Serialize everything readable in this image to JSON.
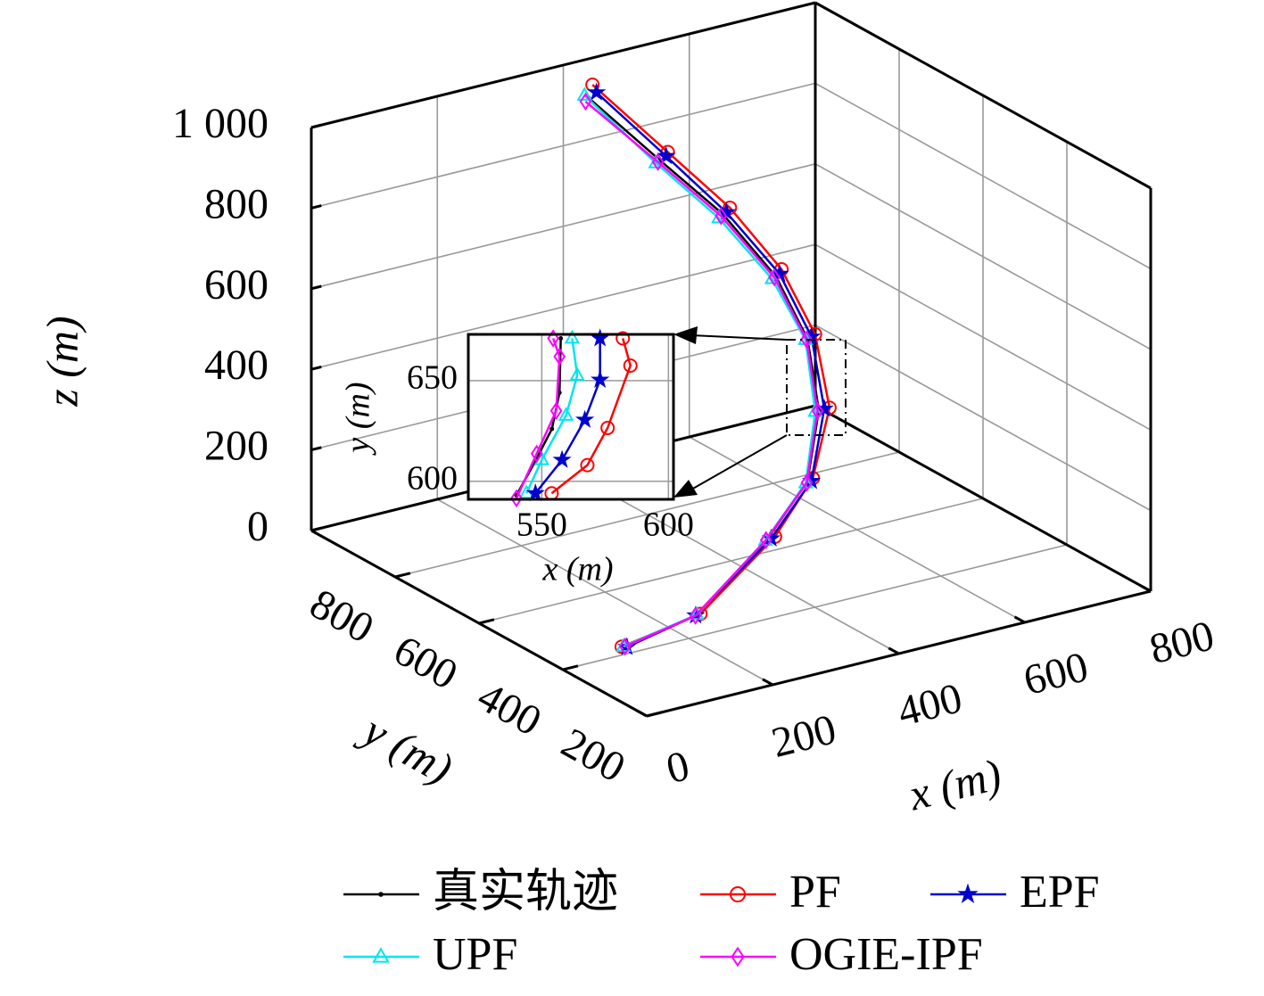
{
  "chart_data": [
    {
      "type": "line3d",
      "xlabel": "x (m)",
      "ylabel": "y (m)",
      "zlabel": "z (m)",
      "xlim": [
        0,
        800
      ],
      "ylim": [
        200,
        1000
      ],
      "zlim": [
        0,
        1000
      ],
      "xticks": [
        0,
        200,
        400,
        600,
        800
      ],
      "yticks": [
        200,
        400,
        600,
        800
      ],
      "zticks": [
        0,
        200,
        400,
        600,
        800,
        {
          "value": 1000,
          "label": "1 000"
        }
      ],
      "grid": true,
      "legend": "bottom",
      "series": [
        {
          "name": "真实轨迹",
          "color": "#000000",
          "marker": "dot",
          "x": [
            113,
            250,
            400,
            480,
            560,
            580,
            560,
            520,
            460,
            400
          ],
          "y": [
            423,
            458,
            514,
            538,
            631,
            688,
            733,
            800,
            859,
            939
          ],
          "z": [
            0,
            5,
            103,
            201,
            294,
            430,
            567,
            699,
            821,
            953
          ]
        },
        {
          "name": "PF",
          "color": "#ff0000",
          "marker": "circle",
          "x": [
            110,
            255,
            410,
            490,
            575,
            590,
            570,
            530,
            470,
            405
          ],
          "y": [
            425,
            455,
            510,
            540,
            628,
            685,
            735,
            798,
            856,
            938
          ],
          "z": [
            0,
            8,
            108,
            205,
            296,
            440,
            580,
            712,
            840,
            985
          ]
        },
        {
          "name": "EPF",
          "color": "#0000cc",
          "marker": "star",
          "x": [
            115,
            248,
            405,
            485,
            568,
            585,
            565,
            525,
            468,
            410
          ],
          "y": [
            420,
            456,
            512,
            536,
            630,
            686,
            732,
            799,
            857,
            936
          ],
          "z": [
            0,
            6,
            104,
            202,
            295,
            435,
            572,
            702,
            830,
            965
          ]
        },
        {
          "name": "UPF",
          "color": "#00e5ee",
          "marker": "triangle",
          "x": [
            112,
            252,
            398,
            478,
            555,
            578,
            555,
            515,
            455,
            395
          ],
          "y": [
            424,
            459,
            515,
            539,
            632,
            690,
            735,
            802,
            862,
            942
          ],
          "z": [
            0,
            5,
            100,
            198,
            292,
            428,
            562,
            690,
            815,
            960
          ]
        },
        {
          "name": "OGIE-IPF",
          "color": "#ff00ff",
          "marker": "diamond",
          "x": [
            114,
            249,
            399,
            479,
            558,
            579,
            558,
            518,
            457,
            396
          ],
          "y": [
            423,
            458,
            515,
            538,
            631,
            689,
            734,
            801,
            860,
            941
          ],
          "z": [
            0,
            4,
            101,
            199,
            293,
            429,
            565,
            694,
            818,
            945
          ]
        }
      ]
    },
    {
      "type": "line",
      "xlabel": "x (m)",
      "ylabel": "y (m)",
      "xlim": [
        521,
        602
      ],
      "ylim": [
        591,
        673
      ],
      "xticks": [
        550,
        600
      ],
      "yticks": [
        600,
        650
      ],
      "grid": true,
      "series": [
        {
          "color": "#000000",
          "marker": "dot",
          "x": [
            540,
            547,
            554,
            557,
            557.5
          ],
          "y": [
            593,
            609,
            626,
            644,
            671
          ]
        },
        {
          "color": "#00e5ee",
          "marker": "triangle",
          "x": [
            544,
            550,
            559.6,
            564,
            562
          ],
          "y": [
            594,
            610.6,
            632.7,
            652.6,
            671
          ]
        },
        {
          "color": "#0000cc",
          "marker": "star",
          "x": [
            547.5,
            558,
            567,
            573,
            573
          ],
          "y": [
            594,
            610.6,
            630.5,
            650.4,
            671
          ]
        },
        {
          "color": "#ff0000",
          "marker": "circle",
          "x": [
            553.9,
            568,
            576,
            585,
            582
          ],
          "y": [
            594,
            608,
            626.5,
            657.5,
            671
          ]
        },
        {
          "color": "#ff00ff",
          "marker": "diamond",
          "x": [
            540,
            548,
            555.7,
            557,
            554.5
          ],
          "y": [
            591.5,
            613.7,
            635,
            662,
            671
          ]
        }
      ]
    }
  ]
}
